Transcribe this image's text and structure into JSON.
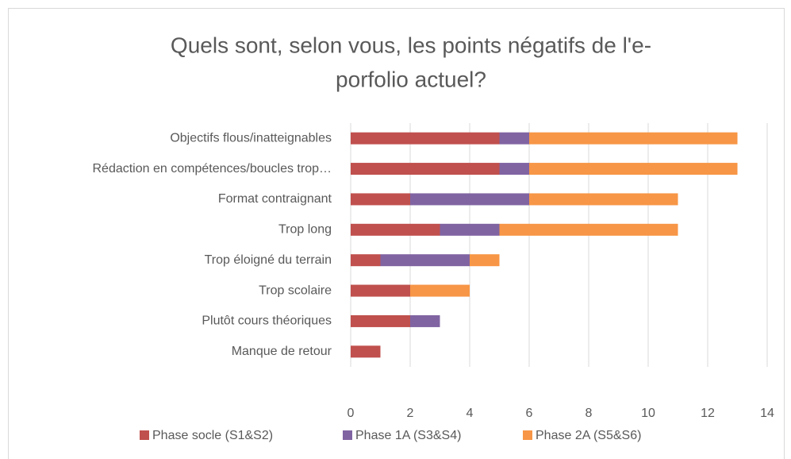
{
  "chart_data": {
    "type": "bar",
    "orientation": "horizontal",
    "stacked": true,
    "title": [
      "Quels sont, selon vous, les points négatifs de l'e-",
      "porfolio actuel?"
    ],
    "categories": [
      "Objectifs flous/inatteignables",
      "Rédaction en compétences/boucles trop…",
      "Format contraignant",
      "Trop long",
      "Trop éloigné du terrain",
      "Trop scolaire",
      "Plutôt cours théoriques",
      "Manque de retour"
    ],
    "series": [
      {
        "name": "Phase socle (S1&S2)",
        "color": "#c0504d",
        "values": [
          5,
          5,
          2,
          3,
          1,
          2,
          2,
          1
        ]
      },
      {
        "name": "Phase 1A (S3&S4)",
        "color": "#8064a2",
        "values": [
          1,
          1,
          4,
          2,
          3,
          0,
          1,
          0
        ]
      },
      {
        "name": "Phase 2A (S5&S6)",
        "color": "#f79646",
        "values": [
          7,
          7,
          5,
          6,
          1,
          2,
          0,
          0
        ]
      }
    ],
    "xlim": [
      0,
      14
    ],
    "xticks": [
      0,
      2,
      4,
      6,
      8,
      10,
      12,
      14
    ],
    "grid": true,
    "legend": "bottom"
  }
}
